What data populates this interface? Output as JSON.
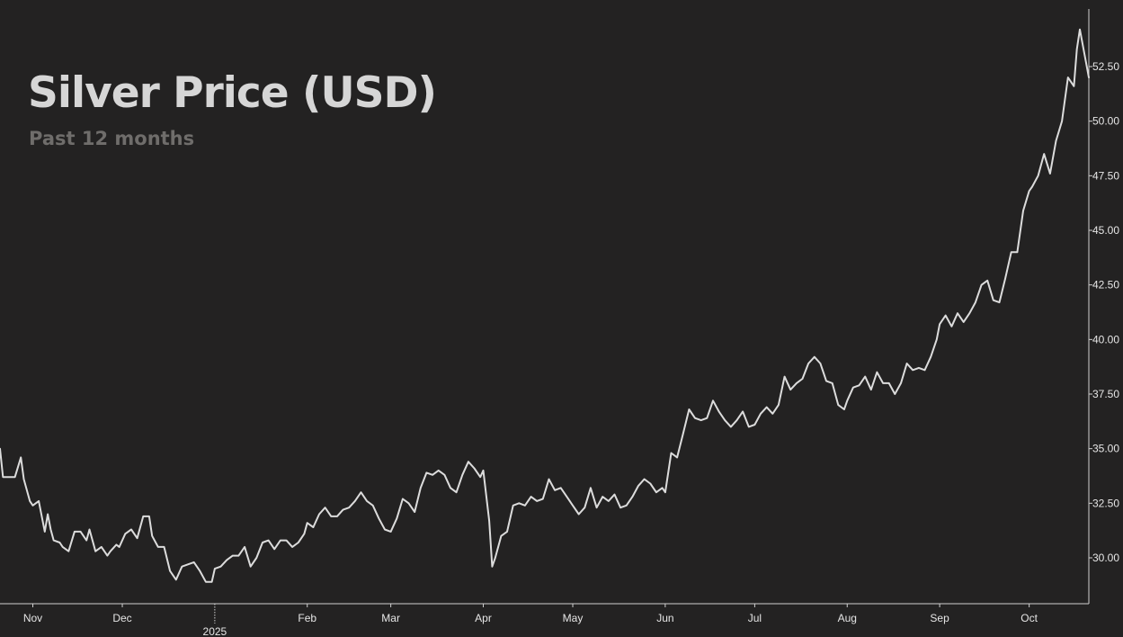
{
  "header": {
    "title": "Silver Price (USD)",
    "subtitle": "Past 12 months"
  },
  "colors": {
    "background": "#232222",
    "line": "#dcdcdc",
    "axis": "#d0d0d0",
    "title": "#d6d6d6",
    "subtitle": "#6f6d6b"
  },
  "chart_data": {
    "type": "line",
    "title": "Silver Price (USD)",
    "subtitle": "Past 12 months",
    "xlabel": "",
    "ylabel": "",
    "x_start": "2024-10-21",
    "x_end": "2025-10-21",
    "ylim": [
      28,
      55
    ],
    "y_ticks": [
      "30.00",
      "32.50",
      "35.00",
      "37.50",
      "40.00",
      "42.50",
      "45.00",
      "47.50",
      "50.00",
      "52.50"
    ],
    "y_tick_values": [
      30,
      32.5,
      35,
      37.5,
      40,
      42.5,
      45,
      47.5,
      50,
      52.5
    ],
    "x_ticks": [
      {
        "label": "Nov",
        "date": "2024-11-01"
      },
      {
        "label": "Dec",
        "date": "2024-12-01"
      },
      {
        "label": "2025",
        "date": "2025-01-01"
      },
      {
        "label": "Feb",
        "date": "2025-02-01"
      },
      {
        "label": "Mar",
        "date": "2025-03-01"
      },
      {
        "label": "Apr",
        "date": "2025-04-01"
      },
      {
        "label": "May",
        "date": "2025-05-01"
      },
      {
        "label": "Jun",
        "date": "2025-06-01"
      },
      {
        "label": "Jul",
        "date": "2025-07-01"
      },
      {
        "label": "Aug",
        "date": "2025-08-01"
      },
      {
        "label": "Sep",
        "date": "2025-09-01"
      },
      {
        "label": "Oct",
        "date": "2025-10-01"
      }
    ],
    "grid": false,
    "y_axis_position": "right",
    "series": [
      {
        "x": [
          "2024-10-21",
          "2024-10-22",
          "2024-10-24",
          "2024-10-26",
          "2024-10-28",
          "2024-10-29",
          "2024-10-31",
          "2024-11-01",
          "2024-11-03",
          "2024-11-05",
          "2024-11-06",
          "2024-11-07",
          "2024-11-08",
          "2024-11-10",
          "2024-11-11",
          "2024-11-13",
          "2024-11-15",
          "2024-11-17",
          "2024-11-19",
          "2024-11-20",
          "2024-11-22",
          "2024-11-24",
          "2024-11-26",
          "2024-11-27",
          "2024-11-29",
          "2024-11-30",
          "2024-12-02",
          "2024-12-04",
          "2024-12-06",
          "2024-12-08",
          "2024-12-10",
          "2024-12-11",
          "2024-12-13",
          "2024-12-15",
          "2024-12-17",
          "2024-12-19",
          "2024-12-21",
          "2024-12-23",
          "2024-12-25",
          "2024-12-27",
          "2024-12-29",
          "2024-12-31",
          "2025-01-01",
          "2025-01-03",
          "2025-01-05",
          "2025-01-07",
          "2025-01-09",
          "2025-01-11",
          "2025-01-13",
          "2025-01-15",
          "2025-01-17",
          "2025-01-19",
          "2025-01-21",
          "2025-01-23",
          "2025-01-25",
          "2025-01-27",
          "2025-01-29",
          "2025-01-31",
          "2025-02-01",
          "2025-02-03",
          "2025-02-05",
          "2025-02-07",
          "2025-02-09",
          "2025-02-11",
          "2025-02-13",
          "2025-02-15",
          "2025-02-17",
          "2025-02-19",
          "2025-02-21",
          "2025-02-23",
          "2025-02-25",
          "2025-02-27",
          "2025-03-01",
          "2025-03-03",
          "2025-03-05",
          "2025-03-07",
          "2025-03-09",
          "2025-03-11",
          "2025-03-13",
          "2025-03-15",
          "2025-03-17",
          "2025-03-19",
          "2025-03-21",
          "2025-03-23",
          "2025-03-25",
          "2025-03-27",
          "2025-03-29",
          "2025-03-31",
          "2025-04-01",
          "2025-04-03",
          "2025-04-04",
          "2025-04-05",
          "2025-04-07",
          "2025-04-09",
          "2025-04-11",
          "2025-04-13",
          "2025-04-15",
          "2025-04-17",
          "2025-04-19",
          "2025-04-21",
          "2025-04-23",
          "2025-04-25",
          "2025-04-27",
          "2025-04-29",
          "2025-05-01",
          "2025-05-03",
          "2025-05-05",
          "2025-05-07",
          "2025-05-09",
          "2025-05-11",
          "2025-05-13",
          "2025-05-15",
          "2025-05-17",
          "2025-05-19",
          "2025-05-21",
          "2025-05-23",
          "2025-05-25",
          "2025-05-27",
          "2025-05-29",
          "2025-05-31",
          "2025-06-01",
          "2025-06-03",
          "2025-06-05",
          "2025-06-07",
          "2025-06-09",
          "2025-06-11",
          "2025-06-13",
          "2025-06-15",
          "2025-06-17",
          "2025-06-19",
          "2025-06-21",
          "2025-06-23",
          "2025-06-25",
          "2025-06-27",
          "2025-06-29",
          "2025-07-01",
          "2025-07-03",
          "2025-07-05",
          "2025-07-07",
          "2025-07-09",
          "2025-07-11",
          "2025-07-13",
          "2025-07-15",
          "2025-07-17",
          "2025-07-19",
          "2025-07-21",
          "2025-07-23",
          "2025-07-25",
          "2025-07-27",
          "2025-07-29",
          "2025-07-31",
          "2025-08-01",
          "2025-08-03",
          "2025-08-05",
          "2025-08-07",
          "2025-08-09",
          "2025-08-11",
          "2025-08-13",
          "2025-08-15",
          "2025-08-17",
          "2025-08-19",
          "2025-08-21",
          "2025-08-23",
          "2025-08-25",
          "2025-08-27",
          "2025-08-29",
          "2025-08-31",
          "2025-09-01",
          "2025-09-03",
          "2025-09-05",
          "2025-09-07",
          "2025-09-09",
          "2025-09-11",
          "2025-09-13",
          "2025-09-15",
          "2025-09-17",
          "2025-09-19",
          "2025-09-21",
          "2025-09-23",
          "2025-09-25",
          "2025-09-27",
          "2025-09-29",
          "2025-10-01",
          "2025-10-02",
          "2025-10-04",
          "2025-10-06",
          "2025-10-08",
          "2025-10-10",
          "2025-10-12",
          "2025-10-14",
          "2025-10-16",
          "2025-10-17",
          "2025-10-18",
          "2025-10-21"
        ],
        "values": [
          35.0,
          33.7,
          33.7,
          33.7,
          34.6,
          33.6,
          32.6,
          32.4,
          32.6,
          31.2,
          32.0,
          31.3,
          30.8,
          30.7,
          30.5,
          30.3,
          31.2,
          31.2,
          30.8,
          31.3,
          30.3,
          30.5,
          30.1,
          30.3,
          30.6,
          30.5,
          31.1,
          31.3,
          30.9,
          31.9,
          31.9,
          31.0,
          30.5,
          30.5,
          29.4,
          29.0,
          29.6,
          29.7,
          29.8,
          29.4,
          28.9,
          28.9,
          29.5,
          29.6,
          29.9,
          30.1,
          30.1,
          30.5,
          29.6,
          30.0,
          30.7,
          30.8,
          30.4,
          30.8,
          30.8,
          30.5,
          30.7,
          31.1,
          31.6,
          31.4,
          32.0,
          32.3,
          31.9,
          31.9,
          32.2,
          32.3,
          32.6,
          33.0,
          32.6,
          32.4,
          31.8,
          31.3,
          31.2,
          31.8,
          32.7,
          32.5,
          32.1,
          33.2,
          33.9,
          33.8,
          34.0,
          33.8,
          33.2,
          33.0,
          33.8,
          34.4,
          34.1,
          33.7,
          34.0,
          31.7,
          29.6,
          30.0,
          31.0,
          31.2,
          32.4,
          32.5,
          32.4,
          32.8,
          32.6,
          32.7,
          33.6,
          33.1,
          33.2,
          32.8,
          32.4,
          32.0,
          32.3,
          33.2,
          32.3,
          32.8,
          32.6,
          32.9,
          32.3,
          32.4,
          32.8,
          33.3,
          33.6,
          33.4,
          33.0,
          33.2,
          33.0,
          34.8,
          34.6,
          35.7,
          36.8,
          36.4,
          36.3,
          36.4,
          37.2,
          36.7,
          36.3,
          36.0,
          36.3,
          36.7,
          36.0,
          36.1,
          36.6,
          36.9,
          36.6,
          37.0,
          38.3,
          37.7,
          38.0,
          38.2,
          38.9,
          39.2,
          38.9,
          38.1,
          38.0,
          37.0,
          36.8,
          37.2,
          37.8,
          37.9,
          38.3,
          37.7,
          38.5,
          38.0,
          38.0,
          37.5,
          38.0,
          38.9,
          38.6,
          38.7,
          38.6,
          39.2,
          40.0,
          40.7,
          41.1,
          40.6,
          41.2,
          40.8,
          41.2,
          41.7,
          42.5,
          42.7,
          41.8,
          41.7,
          42.8,
          44.0,
          44.0,
          45.9,
          46.8,
          47.0,
          47.5,
          48.5,
          47.6,
          49.1,
          50.0,
          52.0,
          51.6,
          53.3,
          54.2,
          52.0
        ]
      }
    ]
  }
}
